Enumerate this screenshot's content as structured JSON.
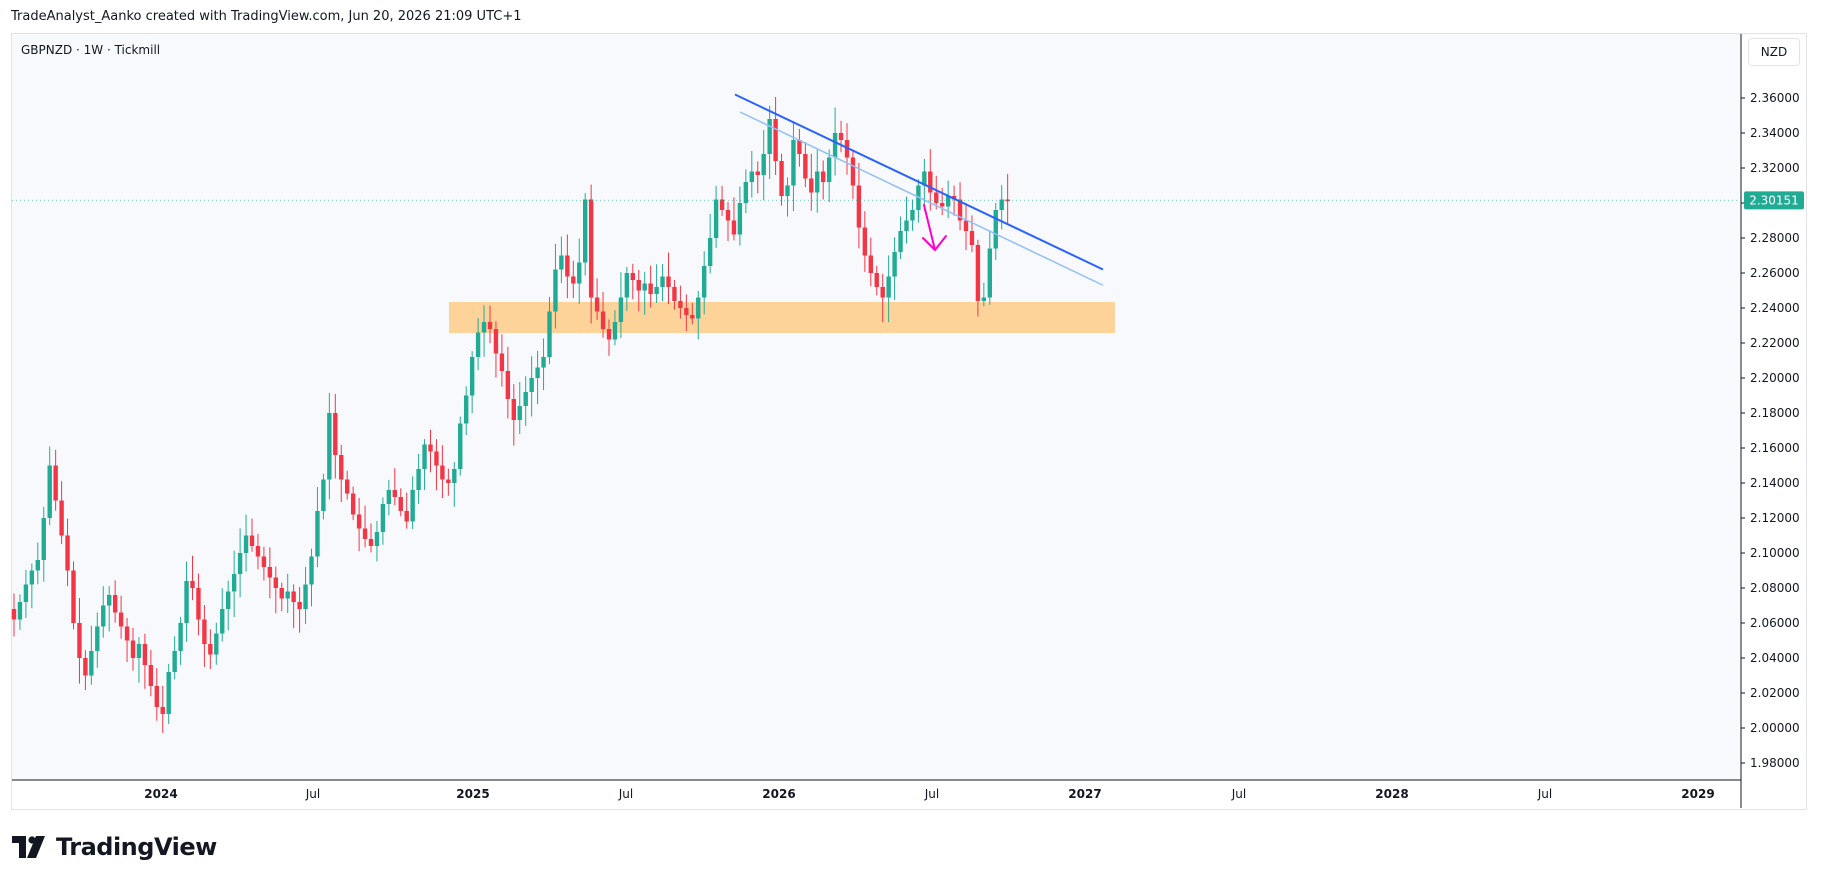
{
  "header": {
    "caption": "TradeAnalyst_Aanko created with TradingView.com, Jun 20, 2026 21:09 UTC+1"
  },
  "chart_title": {
    "symbol_line": "GBPNZD · 1W · Tickmill"
  },
  "price_scale": {
    "currency_button": "NZD",
    "last_price_label": "2.30151",
    "last_price_color": "#22ab94"
  },
  "brand": {
    "name": "TradingView"
  },
  "colors": {
    "up": "#22ab94",
    "down": "#f23645",
    "trendline_main": "#2962ff",
    "trendline_secondary": "#90bff9",
    "zone": "#ffcc88",
    "arrow": "#ff00cc"
  },
  "chart_data": {
    "type": "candlestick",
    "symbol": "GBPNZD",
    "timeframe": "1W",
    "ylim": [
      1.97,
      2.39
    ],
    "y_ticks": [
      "2.36000",
      "2.34000",
      "2.32000",
      "2.30000",
      "2.28000",
      "2.26000",
      "2.24000",
      "2.22000",
      "2.20000",
      "2.18000",
      "2.16000",
      "2.14000",
      "2.12000",
      "2.10000",
      "2.08000",
      "2.06000",
      "2.04000",
      "2.02000",
      "2.00000",
      "1.98000"
    ],
    "x_ticks": [
      {
        "label": "2024",
        "year": true
      },
      {
        "label": "Jul",
        "year": false
      },
      {
        "label": "2025",
        "year": true
      },
      {
        "label": "Jul",
        "year": false
      },
      {
        "label": "2026",
        "year": true
      },
      {
        "label": "Jul",
        "year": false
      },
      {
        "label": "2027",
        "year": true
      },
      {
        "label": "Jul",
        "year": false
      },
      {
        "label": "2028",
        "year": true
      },
      {
        "label": "Jul",
        "year": false
      },
      {
        "label": "2029",
        "year": true
      }
    ],
    "closes": [
      2.062,
      2.072,
      2.082,
      2.09,
      2.096,
      2.12,
      2.15,
      2.13,
      2.11,
      2.09,
      2.06,
      2.04,
      2.03,
      2.044,
      2.058,
      2.07,
      2.076,
      2.066,
      2.058,
      2.05,
      2.04,
      2.048,
      2.036,
      2.024,
      2.012,
      2.008,
      2.032,
      2.044,
      2.06,
      2.084,
      2.08,
      2.062,
      2.048,
      2.042,
      2.054,
      2.068,
      2.078,
      2.088,
      2.1,
      2.11,
      2.104,
      2.098,
      2.092,
      2.086,
      2.08,
      2.074,
      2.078,
      2.072,
      2.068,
      2.082,
      2.098,
      2.124,
      2.142,
      2.18,
      2.156,
      2.142,
      2.134,
      2.122,
      2.114,
      2.108,
      2.104,
      2.112,
      2.128,
      2.136,
      2.132,
      2.124,
      2.118,
      2.136,
      2.148,
      2.162,
      2.158,
      2.15,
      2.142,
      2.14,
      2.148,
      2.174,
      2.19,
      2.212,
      2.226,
      2.232,
      2.228,
      2.214,
      2.204,
      2.188,
      2.176,
      2.184,
      2.192,
      2.2,
      2.206,
      2.212,
      2.238,
      2.262,
      2.27,
      2.258,
      2.254,
      2.266,
      2.302,
      2.246,
      2.238,
      2.228,
      2.222,
      2.232,
      2.246,
      2.26,
      2.256,
      2.25,
      2.254,
      2.248,
      2.252,
      2.258,
      2.252,
      2.244,
      2.24,
      2.236,
      2.234,
      2.246,
      2.264,
      2.28,
      2.302,
      2.296,
      2.29,
      2.282,
      2.3,
      2.312,
      2.318,
      2.316,
      2.328,
      2.348,
      2.324,
      2.304,
      2.31,
      2.336,
      2.328,
      2.314,
      2.306,
      2.318,
      2.312,
      2.326,
      2.34,
      2.336,
      2.326,
      2.31,
      2.286,
      2.27,
      2.26,
      2.252,
      2.246,
      2.258,
      2.272,
      2.284,
      2.29,
      2.296,
      2.31,
      2.318,
      2.306,
      2.3,
      2.298,
      2.304,
      2.302,
      2.29,
      2.284,
      2.276,
      2.244,
      2.246,
      2.274,
      2.296,
      2.302,
      2.301
    ],
    "trendline_main": {
      "from": [
        0.0,
        2.362
      ],
      "to": [
        1.0,
        2.262
      ]
    },
    "trendline_secondary": {
      "from": [
        0.0,
        2.352
      ],
      "to": [
        1.0,
        2.253
      ]
    },
    "support_zone": {
      "low": 2.228,
      "high": 2.24
    }
  }
}
